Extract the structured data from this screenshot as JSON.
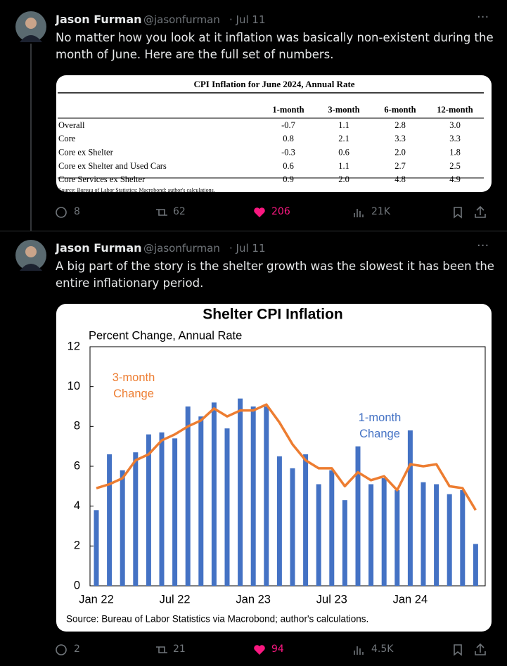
{
  "tweets": [
    {
      "author": "Jason Furman",
      "handle": "@jasonfurman",
      "date": "· Jul 11",
      "text": "No matter how you look at it inflation was basically non-existent during the month of June. Here are the full set of numbers.",
      "table": {
        "title": "CPI Inflation for June 2024, Annual Rate",
        "columns": [
          "1-month",
          "3-month",
          "6-month",
          "12-month"
        ],
        "rows": [
          [
            "Overall",
            "-0.7",
            "1.1",
            "2.8",
            "3.0"
          ],
          [
            "Core",
            "0.8",
            "2.1",
            "3.3",
            "3.3"
          ],
          [
            "Core ex Shelter",
            "-0.3",
            "0.6",
            "2.0",
            "1.8"
          ],
          [
            "Core ex Shelter and Used Cars",
            "0.6",
            "1.1",
            "2.7",
            "2.5"
          ],
          [
            "Core Services ex Shelter",
            "0.9",
            "2.0",
            "4.8",
            "4.9"
          ]
        ],
        "source": "Source: Bureau of Labor Statistics; Macrobond; author's calculations."
      },
      "stats": {
        "replies": "8",
        "reposts": "62",
        "likes": "206",
        "views": "21K"
      }
    },
    {
      "author": "Jason Furman",
      "handle": "@jasonfurman",
      "date": "· Jul 11",
      "text": "A big part of the story is the shelter growth was the slowest it has been the entire inflationary period.",
      "stats": {
        "replies": "2",
        "reposts": "21",
        "likes": "94",
        "views": "4.5K"
      }
    }
  ],
  "chart_data": {
    "type": "bar_line",
    "title": "Shelter CPI Inflation",
    "subtitle": "Percent Change, Annual Rate",
    "source": "Source: Bureau of Labor Statistics via Macrobond; author's calculations.",
    "categories": [
      "Jan 22",
      null,
      null,
      null,
      null,
      null,
      "Jul 22",
      null,
      null,
      null,
      null,
      null,
      "Jan 23",
      null,
      null,
      null,
      null,
      null,
      "Jul 23",
      null,
      null,
      null,
      null,
      null,
      "Jan 24",
      null,
      null,
      null,
      null,
      null
    ],
    "series": [
      {
        "name": "1-month Change",
        "color": "#4472c4",
        "kind": "bar",
        "values": [
          3.8,
          6.6,
          5.8,
          6.7,
          7.6,
          7.7,
          7.4,
          9.0,
          8.5,
          9.2,
          7.9,
          9.4,
          9.0,
          9.0,
          6.5,
          5.9,
          6.6,
          5.1,
          5.8,
          4.3,
          7.0,
          5.1,
          5.4,
          4.8,
          7.8,
          5.2,
          5.1,
          4.6,
          4.8,
          2.1
        ]
      },
      {
        "name": "3-month Change",
        "color": "#ed7d31",
        "kind": "line",
        "values": [
          4.9,
          5.1,
          5.4,
          6.3,
          6.6,
          7.3,
          7.6,
          8.0,
          8.3,
          8.9,
          8.5,
          8.8,
          8.8,
          9.1,
          8.2,
          7.1,
          6.3,
          5.9,
          5.9,
          5.0,
          5.7,
          5.3,
          5.5,
          4.8,
          6.1,
          6.0,
          6.1,
          5.0,
          4.9,
          3.8
        ]
      }
    ],
    "ylim": [
      0,
      12
    ],
    "yticks": [
      0,
      2,
      4,
      6,
      8,
      10,
      12
    ]
  }
}
